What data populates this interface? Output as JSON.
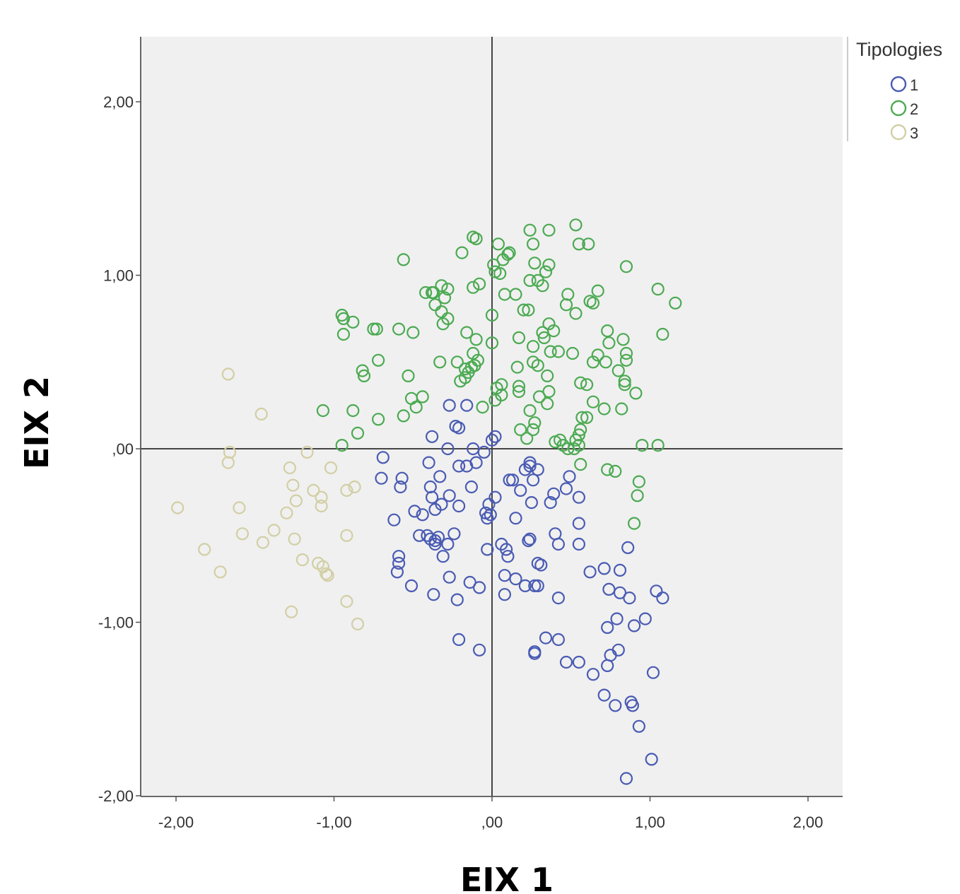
{
  "chart_data": {
    "type": "scatter",
    "title": "",
    "xlabel": "EIX 1",
    "ylabel": "EIX 2",
    "xlim": [
      -2.2,
      2.2
    ],
    "ylim": [
      -2.0,
      2.4
    ],
    "x_ticks": [
      -2,
      -1,
      0,
      1,
      2
    ],
    "y_ticks": [
      -2,
      -1,
      0,
      1,
      2
    ],
    "x_tick_labels": [
      "-2,00",
      "-1,00",
      ",00",
      "1,00",
      "2,00"
    ],
    "y_tick_labels": [
      "-2,00",
      "-1,00",
      ",00",
      "1,00",
      "2,00"
    ],
    "reference_lines": {
      "x": 0,
      "y": 0
    },
    "grid": false,
    "marker": "open-circle",
    "legend_title": "Tipologies",
    "legend_position": "top-right",
    "series": [
      {
        "name": "1",
        "color": "#4a5bb3",
        "points": [
          [
            -0.27,
            0.25
          ],
          [
            -0.16,
            0.25
          ],
          [
            -0.23,
            0.13
          ],
          [
            -0.21,
            0.12
          ],
          [
            -0.38,
            0.07
          ],
          [
            -0.28,
            0.0
          ],
          [
            -0.12,
            0.0
          ],
          [
            -0.05,
            -0.02
          ],
          [
            0.02,
            0.07
          ],
          [
            0.0,
            0.05
          ],
          [
            -0.69,
            -0.05
          ],
          [
            -0.7,
            -0.17
          ],
          [
            -0.57,
            -0.17
          ],
          [
            -0.4,
            -0.08
          ],
          [
            -0.33,
            -0.16
          ],
          [
            -0.21,
            -0.1
          ],
          [
            -0.16,
            -0.1
          ],
          [
            -0.1,
            -0.08
          ],
          [
            -0.13,
            -0.22
          ],
          [
            -0.39,
            -0.22
          ],
          [
            -0.58,
            -0.22
          ],
          [
            -0.38,
            -0.28
          ],
          [
            -0.27,
            -0.27
          ],
          [
            -0.32,
            -0.32
          ],
          [
            -0.21,
            -0.33
          ],
          [
            -0.49,
            -0.36
          ],
          [
            -0.44,
            -0.38
          ],
          [
            -0.36,
            -0.35
          ],
          [
            -0.62,
            -0.41
          ],
          [
            -0.46,
            -0.5
          ],
          [
            -0.41,
            -0.5
          ],
          [
            -0.39,
            -0.52
          ],
          [
            -0.36,
            -0.53
          ],
          [
            -0.34,
            -0.51
          ],
          [
            -0.36,
            -0.55
          ],
          [
            -0.31,
            -0.62
          ],
          [
            -0.24,
            -0.49
          ],
          [
            -0.28,
            -0.55
          ],
          [
            -0.59,
            -0.62
          ],
          [
            -0.59,
            -0.66
          ],
          [
            -0.6,
            -0.71
          ],
          [
            -0.51,
            -0.79
          ],
          [
            -0.37,
            -0.84
          ],
          [
            -0.27,
            -0.74
          ],
          [
            -0.22,
            -0.87
          ],
          [
            -0.14,
            -0.77
          ],
          [
            -0.08,
            -0.8
          ],
          [
            -0.03,
            -0.58
          ],
          [
            -0.04,
            -0.37
          ],
          [
            -0.03,
            -0.4
          ],
          [
            -0.01,
            -0.38
          ],
          [
            -0.02,
            -0.32
          ],
          [
            0.02,
            -0.28
          ],
          [
            0.13,
            -0.18
          ],
          [
            0.11,
            -0.18
          ],
          [
            0.18,
            -0.24
          ],
          [
            0.21,
            -0.12
          ],
          [
            0.24,
            -0.08
          ],
          [
            0.24,
            -0.1
          ],
          [
            0.29,
            -0.12
          ],
          [
            0.26,
            -0.18
          ],
          [
            0.25,
            -0.31
          ],
          [
            0.37,
            -0.31
          ],
          [
            0.39,
            -0.26
          ],
          [
            0.47,
            -0.23
          ],
          [
            0.49,
            -0.16
          ],
          [
            0.55,
            -0.28
          ],
          [
            0.55,
            -0.43
          ],
          [
            0.4,
            -0.49
          ],
          [
            0.42,
            -0.55
          ],
          [
            0.55,
            -0.55
          ],
          [
            0.15,
            -0.4
          ],
          [
            0.06,
            -0.55
          ],
          [
            0.09,
            -0.58
          ],
          [
            0.1,
            -0.62
          ],
          [
            0.08,
            -0.73
          ],
          [
            0.15,
            -0.75
          ],
          [
            0.21,
            -0.79
          ],
          [
            0.27,
            -0.79
          ],
          [
            0.29,
            -0.79
          ],
          [
            0.23,
            -0.53
          ],
          [
            0.24,
            -0.52
          ],
          [
            0.29,
            -0.66
          ],
          [
            0.31,
            -0.67
          ],
          [
            0.08,
            -0.84
          ],
          [
            0.42,
            -0.86
          ],
          [
            0.62,
            -0.71
          ],
          [
            0.71,
            -0.69
          ],
          [
            0.74,
            -0.81
          ],
          [
            0.81,
            -0.83
          ],
          [
            0.81,
            -0.7
          ],
          [
            0.86,
            -0.57
          ],
          [
            0.87,
            -0.86
          ],
          [
            0.79,
            -0.98
          ],
          [
            0.73,
            -1.03
          ],
          [
            0.9,
            -1.02
          ],
          [
            0.97,
            -0.98
          ],
          [
            1.04,
            -0.82
          ],
          [
            1.08,
            -0.86
          ],
          [
            0.8,
            -1.16
          ],
          [
            0.75,
            -1.19
          ],
          [
            0.73,
            -1.25
          ],
          [
            0.64,
            -1.3
          ],
          [
            0.71,
            -1.42
          ],
          [
            0.78,
            -1.48
          ],
          [
            0.88,
            -1.46
          ],
          [
            0.89,
            -1.48
          ],
          [
            0.93,
            -1.6
          ],
          [
            1.02,
            -1.29
          ],
          [
            1.01,
            -1.79
          ],
          [
            0.85,
            -1.9
          ],
          [
            0.34,
            -1.09
          ],
          [
            0.42,
            -1.1
          ],
          [
            0.47,
            -1.23
          ],
          [
            0.55,
            -1.23
          ],
          [
            0.27,
            -1.18
          ],
          [
            0.27,
            -1.17
          ],
          [
            -0.21,
            -1.1
          ],
          [
            -0.08,
            -1.16
          ]
        ]
      },
      {
        "name": "2",
        "color": "#4caa52",
        "points": [
          [
            -0.56,
            1.09
          ],
          [
            -0.12,
            1.22
          ],
          [
            -0.1,
            1.21
          ],
          [
            -0.19,
            1.13
          ],
          [
            0.04,
            1.18
          ],
          [
            0.1,
            1.12
          ],
          [
            0.11,
            1.13
          ],
          [
            0.07,
            1.09
          ],
          [
            0.01,
            1.06
          ],
          [
            0.02,
            1.02
          ],
          [
            0.05,
            1.01
          ],
          [
            0.24,
            1.26
          ],
          [
            0.36,
            1.26
          ],
          [
            0.53,
            1.29
          ],
          [
            0.55,
            1.18
          ],
          [
            0.61,
            1.18
          ],
          [
            0.26,
            1.18
          ],
          [
            0.27,
            1.07
          ],
          [
            0.36,
            1.06
          ],
          [
            0.34,
            1.02
          ],
          [
            0.24,
            0.97
          ],
          [
            0.29,
            0.97
          ],
          [
            0.32,
            0.94
          ],
          [
            0.15,
            0.89
          ],
          [
            0.08,
            0.89
          ],
          [
            -0.12,
            0.93
          ],
          [
            -0.08,
            0.95
          ],
          [
            -0.42,
            0.9
          ],
          [
            -0.37,
            0.9
          ],
          [
            -0.32,
            0.94
          ],
          [
            -0.28,
            0.92
          ],
          [
            -0.3,
            0.87
          ],
          [
            -0.36,
            0.83
          ],
          [
            -0.32,
            0.79
          ],
          [
            -0.28,
            0.75
          ],
          [
            -0.31,
            0.72
          ],
          [
            -0.38,
            0.9
          ],
          [
            0.0,
            0.77
          ],
          [
            0.2,
            0.8
          ],
          [
            0.23,
            0.8
          ],
          [
            0.48,
            0.89
          ],
          [
            0.47,
            0.83
          ],
          [
            0.53,
            0.78
          ],
          [
            0.62,
            0.85
          ],
          [
            0.64,
            0.84
          ],
          [
            0.67,
            0.91
          ],
          [
            0.85,
            1.05
          ],
          [
            1.05,
            0.92
          ],
          [
            1.16,
            0.84
          ],
          [
            1.08,
            0.66
          ],
          [
            -0.95,
            0.77
          ],
          [
            -0.94,
            0.75
          ],
          [
            -0.88,
            0.73
          ],
          [
            -0.94,
            0.66
          ],
          [
            -0.75,
            0.69
          ],
          [
            -0.73,
            0.69
          ],
          [
            -0.59,
            0.69
          ],
          [
            -0.5,
            0.67
          ],
          [
            -0.16,
            0.67
          ],
          [
            -0.1,
            0.63
          ],
          [
            0.0,
            0.61
          ],
          [
            0.17,
            0.64
          ],
          [
            0.26,
            0.59
          ],
          [
            0.32,
            0.67
          ],
          [
            0.36,
            0.72
          ],
          [
            0.39,
            0.68
          ],
          [
            0.33,
            0.64
          ],
          [
            0.37,
            0.56
          ],
          [
            0.42,
            0.56
          ],
          [
            0.51,
            0.55
          ],
          [
            0.56,
            0.38
          ],
          [
            0.6,
            0.37
          ],
          [
            0.64,
            0.5
          ],
          [
            0.67,
            0.54
          ],
          [
            0.72,
            0.5
          ],
          [
            0.73,
            0.68
          ],
          [
            0.74,
            0.61
          ],
          [
            0.8,
            0.45
          ],
          [
            0.83,
            0.63
          ],
          [
            0.85,
            0.55
          ],
          [
            0.85,
            0.51
          ],
          [
            0.84,
            0.39
          ],
          [
            0.84,
            0.37
          ],
          [
            0.91,
            0.32
          ],
          [
            0.82,
            0.23
          ],
          [
            0.71,
            0.23
          ],
          [
            0.64,
            0.27
          ],
          [
            0.57,
            0.18
          ],
          [
            0.6,
            0.18
          ],
          [
            0.56,
            0.11
          ],
          [
            0.55,
            0.08
          ],
          [
            0.53,
            0.05
          ],
          [
            0.55,
            0.02
          ],
          [
            0.52,
            0.0
          ],
          [
            0.48,
            0.0
          ],
          [
            0.43,
            0.05
          ],
          [
            0.56,
            -0.09
          ],
          [
            0.73,
            -0.12
          ],
          [
            0.78,
            -0.13
          ],
          [
            0.93,
            -0.19
          ],
          [
            0.92,
            -0.27
          ],
          [
            0.9,
            -0.43
          ],
          [
            0.95,
            0.02
          ],
          [
            1.05,
            0.02
          ],
          [
            -0.82,
            0.45
          ],
          [
            -0.81,
            0.42
          ],
          [
            -0.72,
            0.51
          ],
          [
            -0.53,
            0.42
          ],
          [
            -0.51,
            0.29
          ],
          [
            -0.48,
            0.24
          ],
          [
            -0.44,
            0.3
          ],
          [
            -0.56,
            0.19
          ],
          [
            -0.72,
            0.17
          ],
          [
            -0.88,
            0.22
          ],
          [
            -1.07,
            0.22
          ],
          [
            -0.85,
            0.09
          ],
          [
            -0.95,
            0.02
          ],
          [
            -0.33,
            0.5
          ],
          [
            -0.22,
            0.5
          ],
          [
            -0.17,
            0.46
          ],
          [
            -0.15,
            0.44
          ],
          [
            -0.13,
            0.47
          ],
          [
            -0.11,
            0.48
          ],
          [
            -0.09,
            0.51
          ],
          [
            -0.12,
            0.55
          ],
          [
            -0.2,
            0.39
          ],
          [
            -0.17,
            0.41
          ],
          [
            -0.06,
            0.24
          ],
          [
            0.03,
            0.35
          ],
          [
            0.06,
            0.37
          ],
          [
            0.06,
            0.31
          ],
          [
            0.02,
            0.28
          ],
          [
            0.16,
            0.47
          ],
          [
            0.17,
            0.36
          ],
          [
            0.17,
            0.33
          ],
          [
            0.26,
            0.5
          ],
          [
            0.29,
            0.48
          ],
          [
            0.35,
            0.42
          ],
          [
            0.36,
            0.33
          ],
          [
            0.3,
            0.3
          ],
          [
            0.35,
            0.26
          ],
          [
            0.24,
            0.22
          ],
          [
            0.27,
            0.15
          ],
          [
            0.26,
            0.11
          ],
          [
            0.18,
            0.11
          ],
          [
            0.22,
            0.06
          ],
          [
            0.4,
            0.04
          ],
          [
            0.45,
            0.02
          ]
        ]
      },
      {
        "name": "3",
        "color": "#d2cfa5",
        "points": [
          [
            -1.67,
            0.43
          ],
          [
            -1.46,
            0.2
          ],
          [
            -1.66,
            -0.02
          ],
          [
            -1.67,
            -0.08
          ],
          [
            -1.28,
            -0.11
          ],
          [
            -1.17,
            -0.02
          ],
          [
            -1.02,
            -0.11
          ],
          [
            -1.26,
            -0.21
          ],
          [
            -1.13,
            -0.24
          ],
          [
            -1.08,
            -0.28
          ],
          [
            -0.92,
            -0.24
          ],
          [
            -0.87,
            -0.22
          ],
          [
            -1.99,
            -0.34
          ],
          [
            -1.6,
            -0.34
          ],
          [
            -1.58,
            -0.49
          ],
          [
            -1.24,
            -0.3
          ],
          [
            -1.08,
            -0.33
          ],
          [
            -1.3,
            -0.37
          ],
          [
            -1.38,
            -0.47
          ],
          [
            -1.45,
            -0.54
          ],
          [
            -1.25,
            -0.52
          ],
          [
            -1.82,
            -0.58
          ],
          [
            -1.72,
            -0.71
          ],
          [
            -1.2,
            -0.64
          ],
          [
            -1.1,
            -0.66
          ],
          [
            -1.07,
            -0.68
          ],
          [
            -1.05,
            -0.72
          ],
          [
            -1.04,
            -0.73
          ],
          [
            -0.92,
            -0.5
          ],
          [
            -0.92,
            -0.88
          ],
          [
            -0.85,
            -1.01
          ],
          [
            -1.27,
            -0.94
          ]
        ]
      }
    ]
  }
}
